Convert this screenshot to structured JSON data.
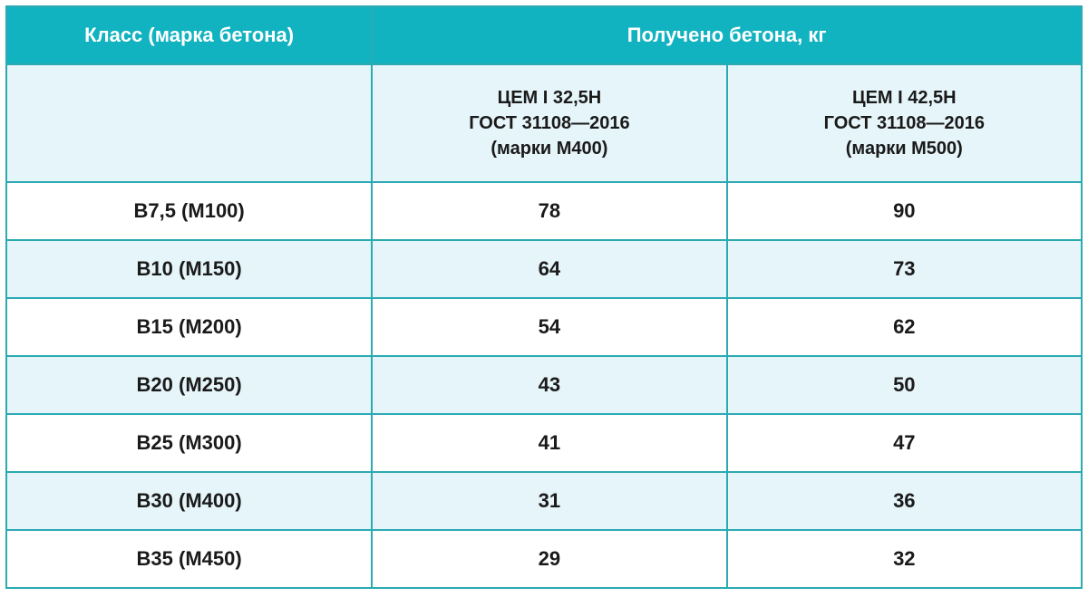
{
  "header": {
    "class_label": "Класс (марка бетона)",
    "yield_label": "Получено бетона, кг"
  },
  "subheader": {
    "empty": "",
    "cem_400_line1": "ЦЕМ I 32,5Н",
    "cem_400_line2": "ГОСТ 31108—2016",
    "cem_400_line3": "(марки М400)",
    "cem_500_line1": "ЦЕМ I 42,5Н",
    "cem_500_line2": "ГОСТ 31108—2016",
    "cem_500_line3": "(марки М500)"
  },
  "rows": [
    {
      "class": "В7,5 (М100)",
      "m400": "78",
      "m500": "90"
    },
    {
      "class": "В10 (М150)",
      "m400": "64",
      "m500": "73"
    },
    {
      "class": "В15 (М200)",
      "m400": "54",
      "m500": "62"
    },
    {
      "class": "В20 (М250)",
      "m400": "43",
      "m500": "50"
    },
    {
      "class": "В25 (М300)",
      "m400": "41",
      "m500": "47"
    },
    {
      "class": "В30 (М400)",
      "m400": "31",
      "m500": "36"
    },
    {
      "class": "В35 (М450)",
      "m400": "29",
      "m500": "32"
    }
  ],
  "style": {
    "header_bg": "#12b3c0",
    "header_text": "#ffffff",
    "border_color": "#2baab3",
    "alt_row_bg": "#e6f5f9",
    "plain_row_bg": "#ffffff",
    "text_color": "#1a1a1a",
    "header_fontsize": 22,
    "subhead_fontsize": 20,
    "cell_fontsize": 22,
    "col_widths": [
      "34%",
      "33%",
      "33%"
    ]
  }
}
